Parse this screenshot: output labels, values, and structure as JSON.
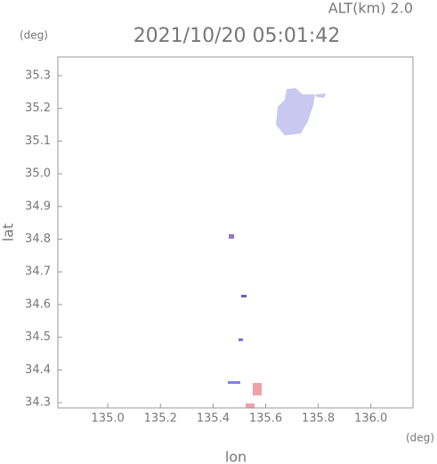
{
  "chart_data": {
    "type": "map",
    "title": "2021/10/20 05:01:42",
    "altitude_label": "ALT(km) 2.0",
    "x_unit": "(deg)",
    "y_unit": "(deg)",
    "xlabel": "lon",
    "ylabel": "lat",
    "xlim": [
      134.81,
      136.16
    ],
    "ylim": [
      34.284,
      35.357
    ],
    "xticks": [
      {
        "value": 135,
        "label": "135.0"
      },
      135.2,
      135.4,
      135.6,
      135.8,
      {
        "value": 136,
        "label": "136.0"
      }
    ],
    "yticks": [
      34.3,
      34.4,
      34.5,
      34.6,
      34.7,
      34.8,
      34.9,
      {
        "value": 35,
        "label": "35.0"
      },
      35.1,
      35.2,
      35.3
    ]
  }
}
